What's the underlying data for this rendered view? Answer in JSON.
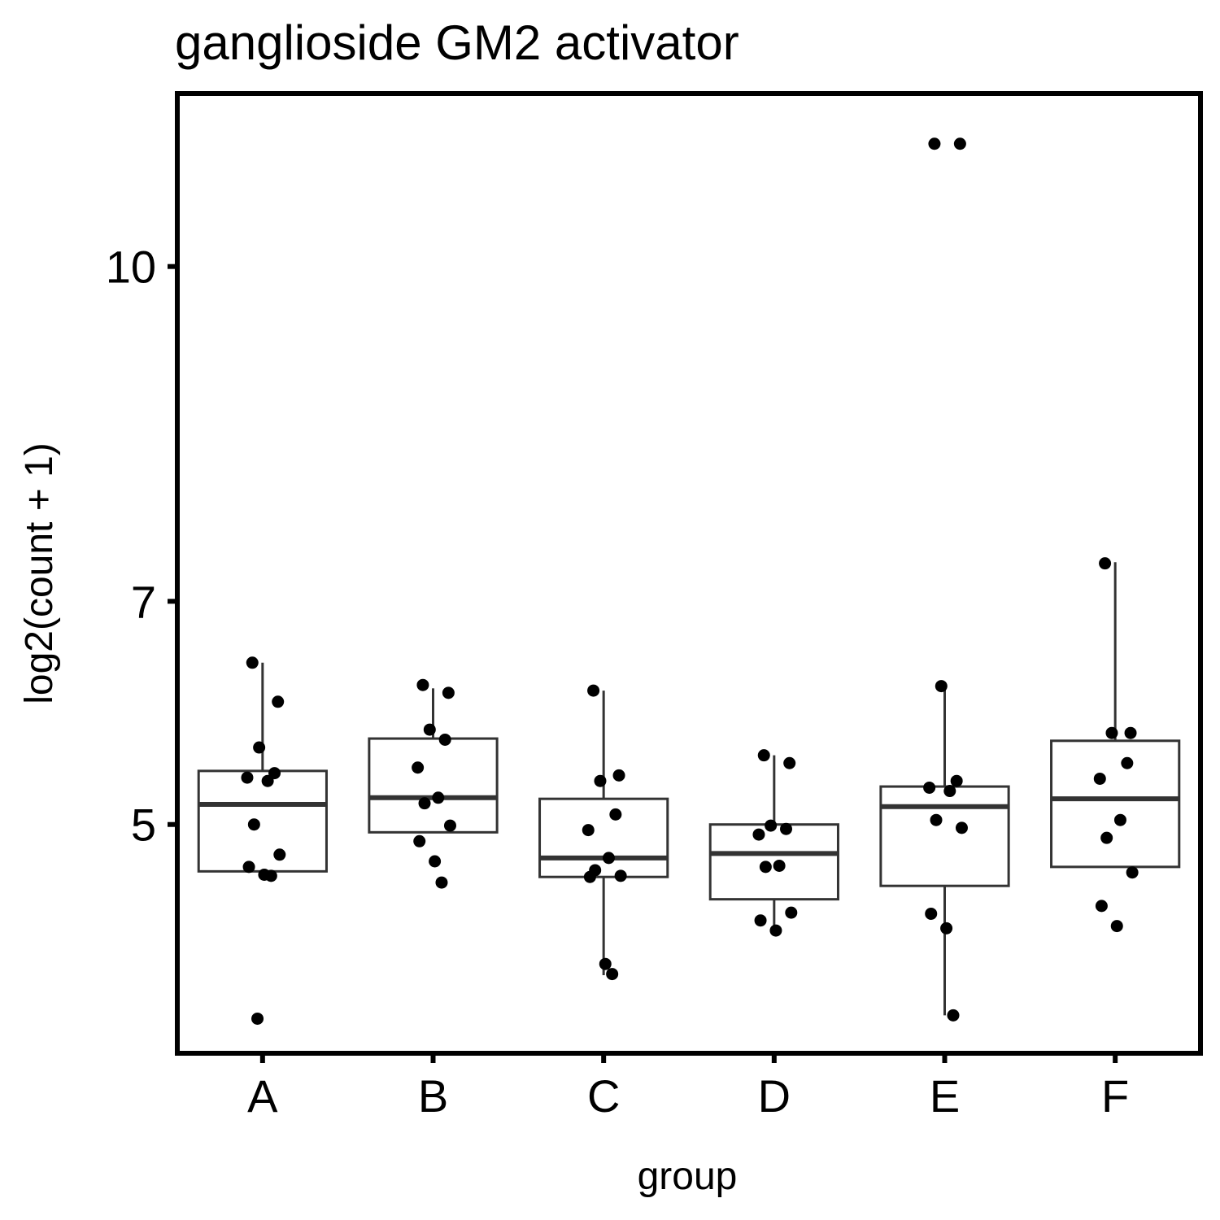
{
  "chart_data": {
    "type": "box",
    "title": "ganglioside GM2 activator",
    "xlabel": "group",
    "ylabel": "log2(count + 1)",
    "ylim": [
      2.95,
      11.55
    ],
    "yticks": [
      5,
      7,
      10
    ],
    "categories": [
      "A",
      "B",
      "C",
      "D",
      "E",
      "F"
    ],
    "boxes": [
      {
        "group": "A",
        "q1": 4.58,
        "median": 5.18,
        "q3": 5.48,
        "whisker_low": 4.58,
        "whisker_high": 6.45
      },
      {
        "group": "B",
        "q1": 4.93,
        "median": 5.24,
        "q3": 5.77,
        "whisker_low": 4.93,
        "whisker_high": 6.22
      },
      {
        "group": "C",
        "q1": 4.53,
        "median": 4.7,
        "q3": 5.23,
        "whisker_low": 3.65,
        "whisker_high": 6.2
      },
      {
        "group": "D",
        "q1": 4.33,
        "median": 4.74,
        "q3": 5.0,
        "whisker_low": 4.07,
        "whisker_high": 5.62
      },
      {
        "group": "E",
        "q1": 4.45,
        "median": 5.16,
        "q3": 5.34,
        "whisker_low": 3.29,
        "whisker_high": 6.25
      },
      {
        "group": "F",
        "q1": 4.62,
        "median": 5.23,
        "q3": 5.75,
        "whisker_low": 4.62,
        "whisker_high": 7.35
      }
    ],
    "points": [
      {
        "group": "A",
        "values": [
          6.45,
          6.1,
          5.69,
          5.46,
          5.42,
          5.39,
          5.0,
          4.73,
          4.62,
          4.55,
          4.54,
          3.26
        ]
      },
      {
        "group": "B",
        "values": [
          6.25,
          6.18,
          5.85,
          5.76,
          5.51,
          5.24,
          5.19,
          4.99,
          4.85,
          4.67,
          4.48
        ]
      },
      {
        "group": "C",
        "values": [
          6.2,
          5.44,
          5.39,
          5.09,
          4.95,
          4.7,
          4.59,
          4.54,
          4.53,
          3.75,
          3.66
        ]
      },
      {
        "group": "D",
        "values": [
          5.62,
          5.55,
          4.99,
          4.96,
          4.91,
          4.63,
          4.62,
          4.21,
          4.14,
          4.05
        ]
      },
      {
        "group": "E",
        "values": [
          11.1,
          11.1,
          6.24,
          5.39,
          5.33,
          5.3,
          5.04,
          4.97,
          4.2,
          4.07,
          3.29
        ]
      },
      {
        "group": "F",
        "values": [
          7.34,
          5.82,
          5.82,
          5.55,
          5.41,
          5.04,
          4.88,
          4.57,
          4.27,
          4.09
        ]
      }
    ],
    "grid": false,
    "legend": "none"
  }
}
